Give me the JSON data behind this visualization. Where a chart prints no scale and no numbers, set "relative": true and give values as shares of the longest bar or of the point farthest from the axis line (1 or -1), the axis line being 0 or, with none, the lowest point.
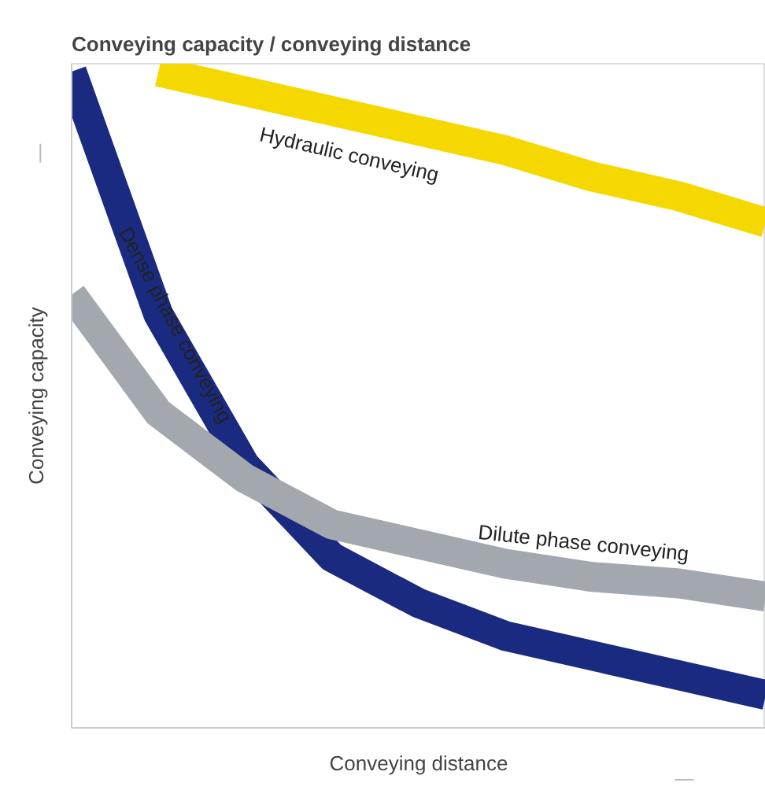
{
  "chart_data": {
    "type": "line",
    "relative": true,
    "title": "Conveying capacity / conveying distance",
    "xlabel": "Conveying distance",
    "ylabel": "Conveying capacity",
    "categories": [
      null,
      null,
      null,
      null,
      null,
      null,
      null,
      null,
      null
    ],
    "series": [
      {
        "name": "Hydraulic conveying",
        "color": "#f5d800",
        "values": [
          null,
          1,
          0.97,
          0.94,
          0.91,
          0.88,
          0.84,
          0.81,
          0.77
        ]
      },
      {
        "name": "Dense phase conveying",
        "color": "#1a2a80",
        "values": [
          1,
          0.63,
          0.4,
          0.26,
          0.19,
          0.14,
          0.11,
          0.08,
          0.05
        ]
      },
      {
        "name": "Dilute phase conveying",
        "color": "#a3a8ae",
        "values": [
          0.66,
          0.48,
          0.38,
          0.31,
          0.28,
          0.25,
          0.23,
          0.22,
          0.2
        ]
      }
    ],
    "line_style": "solid"
  }
}
